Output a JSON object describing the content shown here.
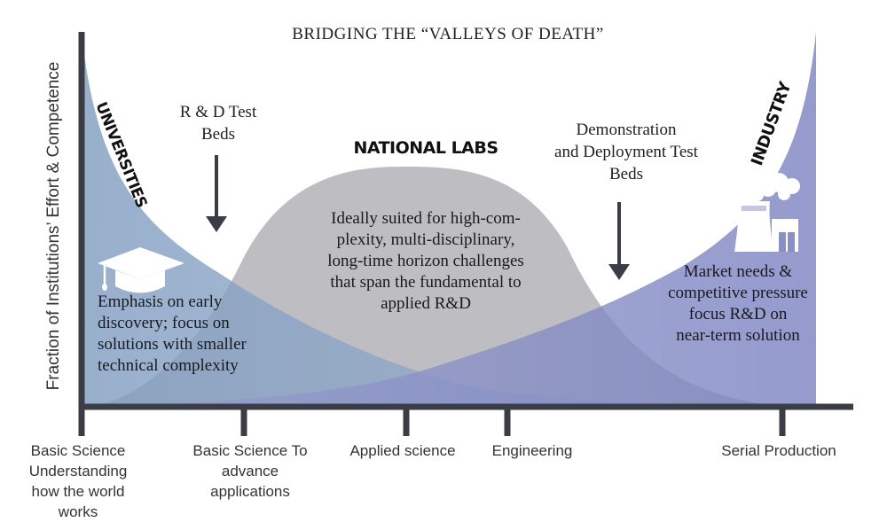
{
  "title": "BRIDGING THE “VALLEYS OF DEATH”",
  "y_axis_label": "Fraction of Institutions’ Effort & Competence",
  "x_ticks": [
    {
      "lines": [
        "Basic Science",
        "Understanding",
        "how the world",
        "works"
      ]
    },
    {
      "lines": [
        "Basic Science To",
        "advance",
        "applications"
      ]
    },
    {
      "lines": [
        "Applied science"
      ]
    },
    {
      "lines": [
        "Engineering"
      ]
    },
    {
      "lines": [
        "Serial Production"
      ]
    }
  ],
  "curves": {
    "universities": {
      "label": "UNIVERSITIES",
      "color": "#8fa8c8"
    },
    "national_labs": {
      "label": "NATIONAL LABS",
      "color": "#b4b4b8"
    },
    "industry": {
      "label": "INDUSTRY",
      "color": "#8890c4"
    }
  },
  "annotations": {
    "rd_test_beds": [
      "R & D Test",
      "Beds"
    ],
    "demo_test_beds": [
      "Demonstration",
      "and Deployment Test",
      "Beds"
    ],
    "universities_text": [
      "Emphasis on early",
      "discovery; focus on",
      "solutions with smaller",
      "technical complexity"
    ],
    "labs_text": [
      "Ideally suited for high-com-",
      "plexity, multi-disciplinary,",
      "long-time horizon challenges",
      "that span the fundamental to",
      "applied R&D"
    ],
    "industry_text": [
      "Market needs &",
      "competitive pressure",
      "focus R&D on",
      "near-term solution"
    ]
  },
  "icons": [
    "graduation-cap-icon",
    "factory-icon"
  ]
}
